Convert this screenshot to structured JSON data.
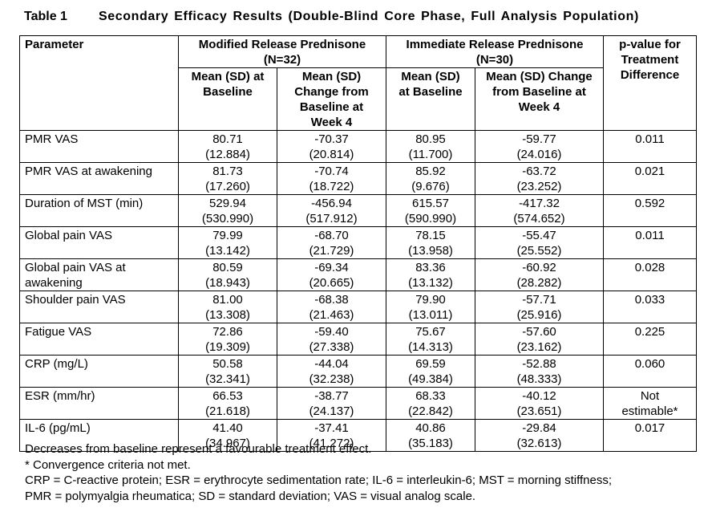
{
  "title": {
    "label": "Table 1",
    "text": "Secondary Efficacy Results (Double-Blind Core Phase, Full Analysis Population)"
  },
  "table": {
    "header": {
      "parameter": "Parameter",
      "groups": [
        {
          "name": "Modified Release Prednisone",
          "n": "(N=32)"
        },
        {
          "name": "Immediate Release Prednisone",
          "n": "(N=30)"
        }
      ],
      "p_value": "p-value for Treatment Difference",
      "subheaders": [
        "Mean (SD) at Baseline",
        "Mean (SD) Change from Baseline at Week 4",
        "Mean (SD) at Baseline",
        "Mean (SD) Change from Baseline at Week 4"
      ]
    },
    "rows": [
      {
        "parameter": "PMR VAS",
        "cells": [
          [
            "80.71",
            "(12.884)"
          ],
          [
            "-70.37",
            "(20.814)"
          ],
          [
            "80.95",
            "(11.700)"
          ],
          [
            "-59.77",
            "(24.016)"
          ]
        ],
        "p_value": "0.011"
      },
      {
        "parameter": "PMR VAS at awakening",
        "cells": [
          [
            "81.73",
            "(17.260)"
          ],
          [
            "-70.74",
            "(18.722)"
          ],
          [
            "85.92",
            "(9.676)"
          ],
          [
            "-63.72",
            "(23.252)"
          ]
        ],
        "p_value": "0.021"
      },
      {
        "parameter": "Duration of MST (min)",
        "cells": [
          [
            "529.94",
            "(530.990)"
          ],
          [
            "-456.94",
            "(517.912)"
          ],
          [
            "615.57",
            "(590.990)"
          ],
          [
            "-417.32",
            "(574.652)"
          ]
        ],
        "p_value": "0.592"
      },
      {
        "parameter": "Global pain VAS",
        "cells": [
          [
            "79.99",
            "(13.142)"
          ],
          [
            "-68.70",
            "(21.729)"
          ],
          [
            "78.15",
            "(13.958)"
          ],
          [
            "-55.47",
            "(25.552)"
          ]
        ],
        "p_value": "0.011"
      },
      {
        "parameter": "Global pain VAS at awakening",
        "cells": [
          [
            "80.59",
            "(18.943)"
          ],
          [
            "-69.34",
            "(20.665)"
          ],
          [
            "83.36",
            "(13.132)"
          ],
          [
            "-60.92",
            "(28.282)"
          ]
        ],
        "p_value": "0.028"
      },
      {
        "parameter": "Shoulder pain VAS",
        "cells": [
          [
            "81.00",
            "(13.308)"
          ],
          [
            "-68.38",
            "(21.463)"
          ],
          [
            "79.90",
            "(13.011)"
          ],
          [
            "-57.71",
            "(25.916)"
          ]
        ],
        "p_value": "0.033"
      },
      {
        "parameter": "Fatigue VAS",
        "cells": [
          [
            "72.86",
            "(19.309)"
          ],
          [
            "-59.40",
            "(27.338)"
          ],
          [
            "75.67",
            "(14.313)"
          ],
          [
            "-57.60",
            "(23.162)"
          ]
        ],
        "p_value": "0.225"
      },
      {
        "parameter": "CRP (mg/L)",
        "cells": [
          [
            "50.58",
            "(32.341)"
          ],
          [
            "-44.04",
            "(32.238)"
          ],
          [
            "69.59",
            "(49.384)"
          ],
          [
            "-52.88",
            "(48.333)"
          ]
        ],
        "p_value": "0.060"
      },
      {
        "parameter": "ESR (mm/hr)",
        "cells": [
          [
            "66.53",
            "(21.618)"
          ],
          [
            "-38.77",
            "(24.137)"
          ],
          [
            "68.33",
            "(22.842)"
          ],
          [
            "-40.12",
            "(23.651)"
          ]
        ],
        "p_value": "Not estimable*"
      },
      {
        "parameter": "IL-6 (pg/mL)",
        "cells": [
          [
            "41.40",
            "(34.967)"
          ],
          [
            "-37.41",
            "(41.272)"
          ],
          [
            "40.86",
            "(35.183)"
          ],
          [
            "-29.84",
            "(32.613)"
          ]
        ],
        "p_value": "0.017"
      }
    ]
  },
  "footnotes": [
    "Decreases from baseline represent a favourable treatment effect.",
    "* Convergence criteria not met.",
    "CRP = C-reactive protein; ESR = erythrocyte sedimentation rate; IL-6 = interleukin-6; MST = morning stiffness;",
    "PMR = polymyalgia rheumatica; SD = standard deviation; VAS = visual analog scale."
  ]
}
